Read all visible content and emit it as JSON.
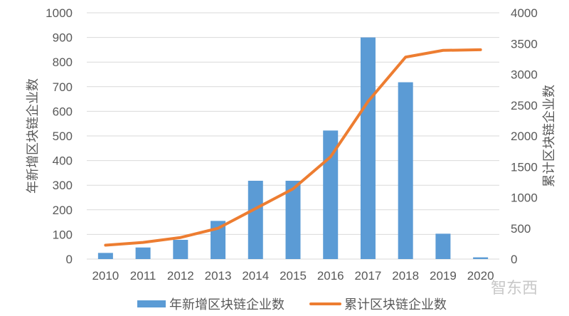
{
  "chart_data": {
    "type": "bar+line",
    "title": "",
    "categories": [
      "2010",
      "2011",
      "2012",
      "2013",
      "2014",
      "2015",
      "2016",
      "2017",
      "2018",
      "2019",
      "2020"
    ],
    "series": [
      {
        "name": "年新增区块链企业数",
        "type": "bar",
        "axis": "left",
        "color": "#5b9bd5",
        "values": [
          25,
          47,
          78,
          155,
          318,
          318,
          522,
          900,
          718,
          103,
          7
        ]
      },
      {
        "name": "累计区块链企业数",
        "type": "line",
        "axis": "right",
        "color": "#ed7d31",
        "values": [
          225,
          270,
          350,
          500,
          820,
          1140,
          1660,
          2560,
          3280,
          3390,
          3400
        ]
      }
    ],
    "ylabel": "年新增区块链企业数",
    "y2label": "累计区块链企业数",
    "xlabel": "",
    "ylim": [
      0,
      1000
    ],
    "y2lim": [
      0,
      4000
    ],
    "yticks": [
      "0",
      "100",
      "200",
      "300",
      "400",
      "500",
      "600",
      "700",
      "800",
      "900",
      "1000"
    ],
    "y2ticks": [
      "0",
      "500",
      "1000",
      "1500",
      "2000",
      "2500",
      "3000",
      "3500",
      "4000"
    ],
    "grid": true,
    "legend_position": "bottom"
  },
  "legend": {
    "bar_label": "年新增区块链企业数",
    "line_label": "累计区块链企业数"
  },
  "watermark": {
    "text": "智东西"
  }
}
